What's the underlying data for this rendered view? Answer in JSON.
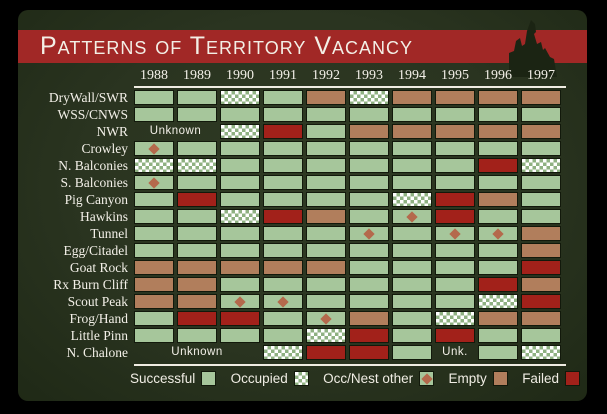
{
  "banner": {
    "title": "Patterns of Territory Vacancy"
  },
  "colors": {
    "banner_red": "#a12826",
    "slide_background": "#2a3420",
    "successful_green": "#a6c69b",
    "occupied_checker_green": "#8fb182",
    "empty_brown": "#b17e5c",
    "failed_red": "#a2211a",
    "diamond_rust": "#b4694c",
    "text_white": "#f3f0e8"
  },
  "chart_data": {
    "type": "heatmap",
    "title": "Patterns of Territory Vacancy",
    "x": [
      "1988",
      "1989",
      "1990",
      "1991",
      "1992",
      "1993",
      "1994",
      "1995",
      "1996",
      "1997"
    ],
    "value_key": {
      "S": "Successful",
      "O": "Occupied",
      "D": "Occ/Nest other",
      "E": "Empty",
      "F": "Failed",
      "U": "Unknown"
    },
    "rows": [
      {
        "label": "DryWall/SWR",
        "values": [
          "S",
          "S",
          "O",
          "S",
          "E",
          "O",
          "E",
          "E",
          "E",
          "E"
        ]
      },
      {
        "label": "WSS/CNWS",
        "values": [
          "S",
          "S",
          "S",
          "S",
          "S",
          "S",
          "S",
          "S",
          "S",
          "S"
        ]
      },
      {
        "label": "NWR",
        "values": [
          "U",
          "U",
          "O",
          "F",
          "S",
          "E",
          "E",
          "E",
          "E",
          "E"
        ],
        "annotations": [
          {
            "text": "Unknown",
            "start": 0,
            "span": 2
          }
        ]
      },
      {
        "label": "Crowley",
        "values": [
          "D",
          "S",
          "S",
          "S",
          "S",
          "S",
          "S",
          "S",
          "S",
          "S"
        ]
      },
      {
        "label": "N. Balconies",
        "values": [
          "O",
          "O",
          "S",
          "S",
          "S",
          "S",
          "S",
          "S",
          "F",
          "O"
        ]
      },
      {
        "label": "S. Balconies",
        "values": [
          "D",
          "S",
          "S",
          "S",
          "S",
          "S",
          "S",
          "S",
          "S",
          "S"
        ]
      },
      {
        "label": "Pig Canyon",
        "values": [
          "S",
          "F",
          "S",
          "S",
          "S",
          "S",
          "O",
          "F",
          "E",
          "S"
        ]
      },
      {
        "label": "Hawkins",
        "values": [
          "S",
          "S",
          "O",
          "F",
          "E",
          "S",
          "D",
          "F",
          "S",
          "S"
        ]
      },
      {
        "label": "Tunnel",
        "values": [
          "S",
          "S",
          "S",
          "S",
          "S",
          "D",
          "S",
          "D",
          "D",
          "E"
        ]
      },
      {
        "label": "Egg/Citadel",
        "values": [
          "S",
          "S",
          "S",
          "S",
          "S",
          "S",
          "S",
          "S",
          "S",
          "E"
        ]
      },
      {
        "label": "Goat Rock",
        "values": [
          "E",
          "E",
          "E",
          "E",
          "E",
          "S",
          "S",
          "S",
          "S",
          "F"
        ]
      },
      {
        "label": "Rx Burn Cliff",
        "values": [
          "E",
          "E",
          "S",
          "S",
          "S",
          "S",
          "S",
          "S",
          "F",
          "E"
        ]
      },
      {
        "label": "Scout Peak",
        "values": [
          "E",
          "E",
          "D",
          "D",
          "S",
          "S",
          "S",
          "S",
          "O",
          "F"
        ]
      },
      {
        "label": "Frog/Hand",
        "values": [
          "S",
          "F",
          "F",
          "S",
          "D",
          "E",
          "S",
          "O",
          "E",
          "E"
        ]
      },
      {
        "label": "Little Pinn",
        "values": [
          "S",
          "S",
          "S",
          "S",
          "O",
          "F",
          "S",
          "F",
          "S",
          "S"
        ]
      },
      {
        "label": "N. Chalone",
        "values": [
          "U",
          "U",
          "U",
          "O",
          "F",
          "F",
          "S",
          "U",
          "S",
          "O"
        ],
        "annotations": [
          {
            "text": "Unknown",
            "start": 0,
            "span": 3
          },
          {
            "text": "Unk.",
            "start": 7,
            "span": 1
          }
        ]
      }
    ],
    "legend": [
      {
        "label": "Successful",
        "type": "S"
      },
      {
        "label": "Occupied",
        "type": "O"
      },
      {
        "label": "Occ/Nest other",
        "type": "D"
      },
      {
        "label": "Empty",
        "type": "E"
      },
      {
        "label": "Failed",
        "type": "F"
      }
    ],
    "layout": {
      "grid": true,
      "legend_position": "bottom",
      "x_axis_position": "top"
    }
  }
}
